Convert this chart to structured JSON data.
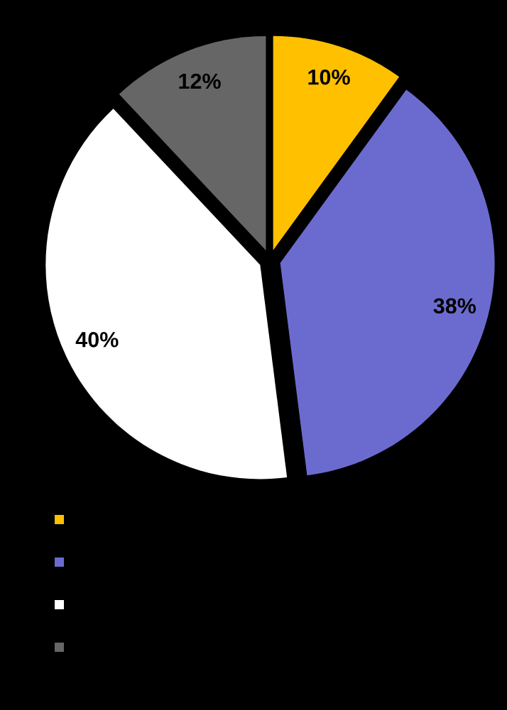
{
  "chart_data": {
    "type": "pie",
    "categories": [
      null,
      null,
      null,
      null
    ],
    "values": [
      10,
      38,
      40,
      12
    ],
    "colors": [
      "#ffc000",
      "#6b6bcf",
      "#ffffff",
      "#666666"
    ],
    "value_labels": [
      "10%",
      "38%",
      "40%",
      "12%"
    ]
  }
}
